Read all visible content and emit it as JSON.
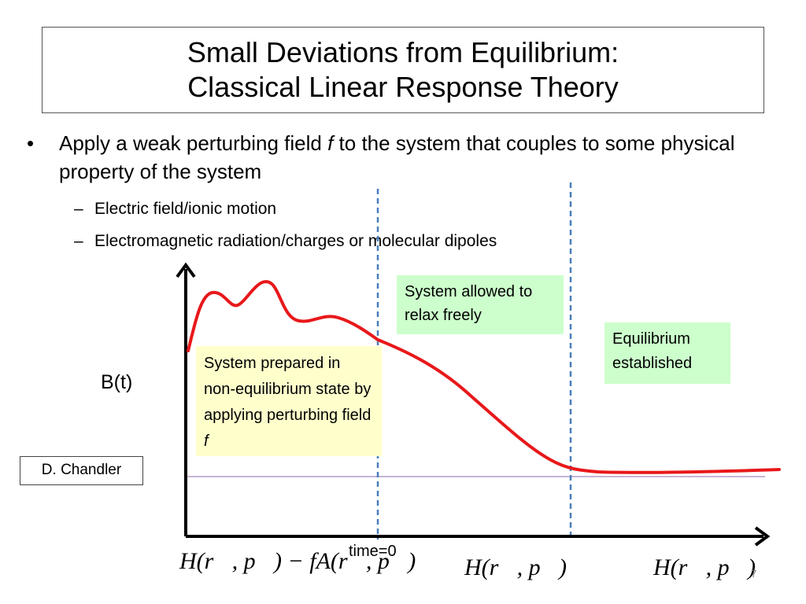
{
  "title": {
    "line1": "Small Deviations from Equilibrium:",
    "line2": "Classical Linear Response Theory"
  },
  "bullet": {
    "marker": "•",
    "text_before": "Apply a weak perturbing field ",
    "symbol": "f",
    "text_after": " to the system that couples to some physical property of the system"
  },
  "subbullets": [
    "Electric field/ionic motion",
    "Electromagnetic radiation/charges or molecular dipoles"
  ],
  "subbullet_marker": "–",
  "notes": {
    "relax": "System allowed to relax freely",
    "equilibrium": "Equilibrium established",
    "prepared_text": "System prepared in non-equilibrium state  by applying perturbing field ",
    "prepared_symbol": "f"
  },
  "axis": {
    "ylabel": "B(t)",
    "time_marker": "time=0"
  },
  "attribution": "D. Chandler",
  "hamiltonians": {
    "perturbed": "H(r⃗, p⃗) − fA(r⃗, p⃗)",
    "free_1": "H(r⃗, p⃗)",
    "free_2": "H(r⃗, p⃗)"
  },
  "page_number": "7",
  "colors": {
    "curve": "#e8181a",
    "dashed_lines": "#4a7ebb",
    "equilibrium_line": "#b59cc9",
    "green_note": "#ccffcc",
    "yellow_note": "#ffffcc"
  }
}
